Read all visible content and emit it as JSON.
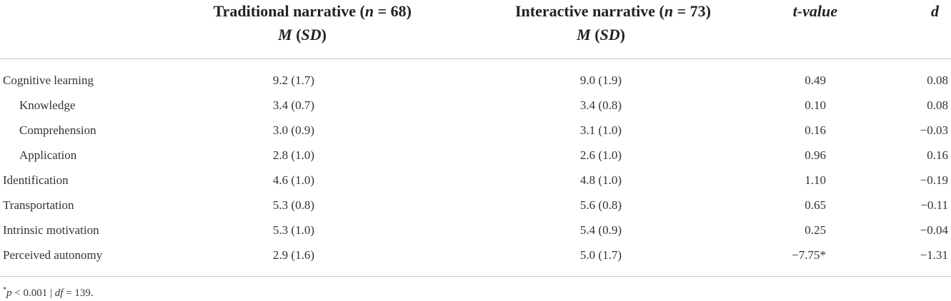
{
  "header": {
    "traditional": {
      "label": "Traditional narrative",
      "n": "68",
      "sub": "M (SD)"
    },
    "interactive": {
      "label": "Interactive narrative",
      "n": "73",
      "sub": "M (SD)"
    },
    "t_value": "t-value",
    "d": "d"
  },
  "rows": [
    {
      "label": "Cognitive learning",
      "indent": false,
      "trad": "9.2 (1.7)",
      "inter": "9.0 (1.9)",
      "t": "0.49",
      "d": "0.08"
    },
    {
      "label": "Knowledge",
      "indent": true,
      "trad": "3.4 (0.7)",
      "inter": "3.4 (0.8)",
      "t": "0.10",
      "d": "0.08"
    },
    {
      "label": "Comprehension",
      "indent": true,
      "trad": "3.0 (0.9)",
      "inter": "3.1 (1.0)",
      "t": "0.16",
      "d": "−0.03"
    },
    {
      "label": "Application",
      "indent": true,
      "trad": "2.8 (1.0)",
      "inter": "2.6 (1.0)",
      "t": "0.96",
      "d": "0.16"
    },
    {
      "label": "Identification",
      "indent": false,
      "trad": "4.6 (1.0)",
      "inter": "4.8 (1.0)",
      "t": "1.10",
      "d": "−0.19"
    },
    {
      "label": "Transportation",
      "indent": false,
      "trad": "5.3 (0.8)",
      "inter": "5.6 (0.8)",
      "t": "0.65",
      "d": "−0.11"
    },
    {
      "label": "Intrinsic motivation",
      "indent": false,
      "trad": "5.3 (1.0)",
      "inter": "5.4 (0.9)",
      "t": "0.25",
      "d": "−0.04"
    },
    {
      "label": "Perceived autonomy",
      "indent": false,
      "trad": "2.9 (1.6)",
      "inter": "5.0 (1.7)",
      "t": "−7.75*",
      "d": "−1.31"
    }
  ],
  "footnote": {
    "marker": "*",
    "p_label": "p",
    "p_text": " < 0.001 | ",
    "df_label": "df",
    "df_text": " = 139."
  }
}
